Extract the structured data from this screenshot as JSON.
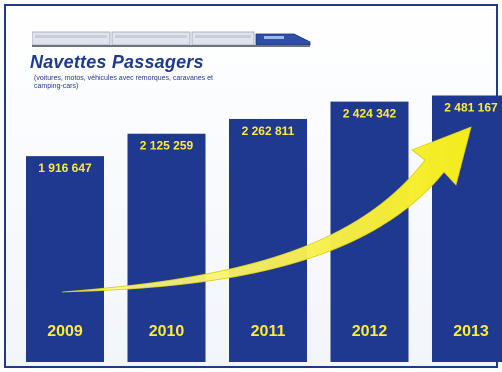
{
  "title": "Navettes Passagers",
  "subtitle": "(voitures, motos, véhicules avec remorques, caravanes et camping-cars)",
  "colors": {
    "bar": "#1f3890",
    "label": "#ffeb3b",
    "arrow": "#f5ec1a",
    "frame": "#1f3a8a"
  },
  "chart_data": {
    "type": "bar",
    "title": "Navettes Passagers",
    "subtitle": "(voitures, motos, véhicules avec remorques, caravanes et camping-cars)",
    "categories": [
      "2009",
      "2010",
      "2011",
      "2012",
      "2013"
    ],
    "values": [
      1916647,
      2125259,
      2262811,
      2424342,
      2481167
    ],
    "value_labels": [
      "1 916 647",
      "2 125 259",
      "2 262 811",
      "2 424 342",
      "2 481 167"
    ],
    "xlabel": "",
    "ylabel": "",
    "ylim": [
      0,
      2700000
    ],
    "grid": false,
    "legend": "none",
    "annotation": "yellow upward trend arrow"
  }
}
